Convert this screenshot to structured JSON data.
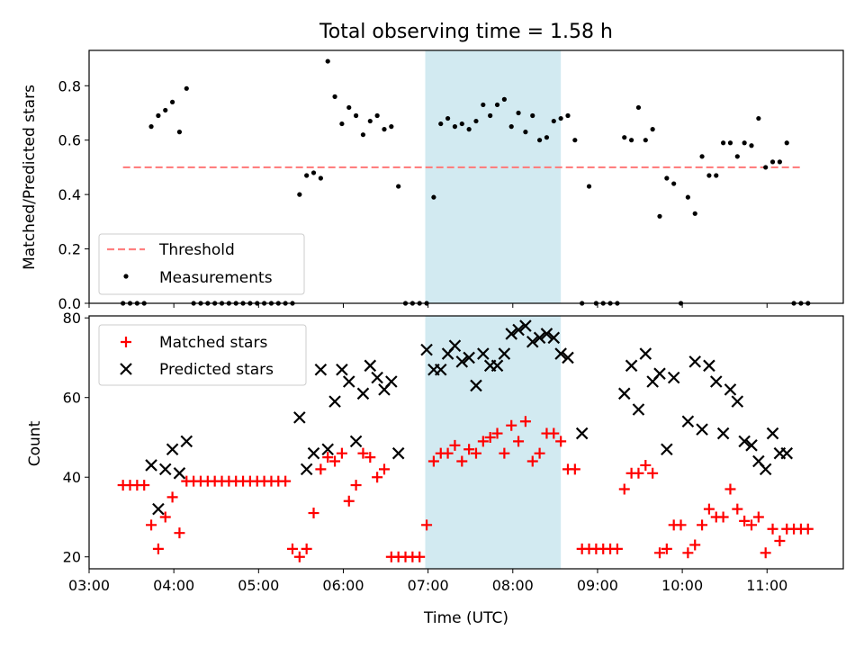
{
  "title": "Total observing time = 1.58 h",
  "xlabel": "Time (UTC)",
  "x_ticks": [
    "03:00",
    "04:00",
    "05:00",
    "06:00",
    "07:00",
    "08:00",
    "09:00",
    "10:00",
    "11:00"
  ],
  "highlight_span": {
    "start": "06:58",
    "end": "08:34",
    "color": "#add8e6"
  },
  "chart_data": [
    {
      "type": "scatter",
      "ylabel": "Matched/Predicted stars",
      "ylim": [
        0,
        0.93
      ],
      "y_ticks": [
        "0.0",
        "0.2",
        "0.4",
        "0.6",
        "0.8"
      ],
      "threshold": {
        "name": "Threshold",
        "value": 0.5,
        "x_range": [
          "03:24",
          "11:24"
        ],
        "color": "#ff7f7f"
      },
      "legend": {
        "placement": "lower-left",
        "entries": [
          "Threshold",
          "Measurements"
        ]
      },
      "series": [
        {
          "name": "Measurements",
          "marker": "dot",
          "color": "#000000",
          "points": [
            [
              "03:24",
              0
            ],
            [
              "03:29",
              0
            ],
            [
              "03:34",
              0
            ],
            [
              "03:39",
              0
            ],
            [
              "03:44",
              0.65
            ],
            [
              "03:49",
              0.69
            ],
            [
              "03:54",
              0.71
            ],
            [
              "03:59",
              0.74
            ],
            [
              "04:04",
              0.63
            ],
            [
              "04:09",
              0.79
            ],
            [
              "04:14",
              0
            ],
            [
              "04:19",
              0
            ],
            [
              "04:24",
              0
            ],
            [
              "04:29",
              0
            ],
            [
              "04:34",
              0
            ],
            [
              "04:39",
              0
            ],
            [
              "04:44",
              0
            ],
            [
              "04:49",
              0
            ],
            [
              "04:54",
              0
            ],
            [
              "04:59",
              0
            ],
            [
              "05:04",
              0
            ],
            [
              "05:09",
              0
            ],
            [
              "05:14",
              0
            ],
            [
              "05:19",
              0
            ],
            [
              "05:24",
              0
            ],
            [
              "05:29",
              0.4
            ],
            [
              "05:34",
              0.47
            ],
            [
              "05:39",
              0.48
            ],
            [
              "05:44",
              0.46
            ],
            [
              "05:49",
              0.89
            ],
            [
              "05:54",
              0.76
            ],
            [
              "05:59",
              0.66
            ],
            [
              "06:04",
              0.72
            ],
            [
              "06:09",
              0.69
            ],
            [
              "06:14",
              0.62
            ],
            [
              "06:19",
              0.67
            ],
            [
              "06:24",
              0.69
            ],
            [
              "06:29",
              0.64
            ],
            [
              "06:34",
              0.65
            ],
            [
              "06:39",
              0.43
            ],
            [
              "06:44",
              0
            ],
            [
              "06:49",
              0
            ],
            [
              "06:54",
              0
            ],
            [
              "06:59",
              0
            ],
            [
              "07:04",
              0.39
            ],
            [
              "07:09",
              0.66
            ],
            [
              "07:14",
              0.68
            ],
            [
              "07:19",
              0.65
            ],
            [
              "07:24",
              0.66
            ],
            [
              "07:29",
              0.64
            ],
            [
              "07:34",
              0.67
            ],
            [
              "07:39",
              0.73
            ],
            [
              "07:44",
              0.69
            ],
            [
              "07:49",
              0.73
            ],
            [
              "07:54",
              0.75
            ],
            [
              "07:59",
              0.65
            ],
            [
              "08:04",
              0.7
            ],
            [
              "08:09",
              0.63
            ],
            [
              "08:14",
              0.69
            ],
            [
              "08:19",
              0.6
            ],
            [
              "08:24",
              0.61
            ],
            [
              "08:29",
              0.67
            ],
            [
              "08:34",
              0.68
            ],
            [
              "08:39",
              0.69
            ],
            [
              "08:44",
              0.6
            ],
            [
              "08:49",
              0
            ],
            [
              "08:54",
              0.43
            ],
            [
              "08:59",
              0
            ],
            [
              "09:04",
              0
            ],
            [
              "09:09",
              0
            ],
            [
              "09:14",
              0
            ],
            [
              "09:19",
              0.61
            ],
            [
              "09:24",
              0.6
            ],
            [
              "09:29",
              0.72
            ],
            [
              "09:34",
              0.6
            ],
            [
              "09:39",
              0.64
            ],
            [
              "09:44",
              0.32
            ],
            [
              "09:49",
              0.46
            ],
            [
              "09:54",
              0.44
            ],
            [
              "09:59",
              0
            ],
            [
              "10:04",
              0.39
            ],
            [
              "10:09",
              0.33
            ],
            [
              "10:14",
              0.54
            ],
            [
              "10:19",
              0.47
            ],
            [
              "10:24",
              0.47
            ],
            [
              "10:29",
              0.59
            ],
            [
              "10:34",
              0.59
            ],
            [
              "10:39",
              0.54
            ],
            [
              "10:44",
              0.59
            ],
            [
              "10:49",
              0.58
            ],
            [
              "10:54",
              0.68
            ],
            [
              "10:59",
              0.5
            ],
            [
              "11:04",
              0.52
            ],
            [
              "11:09",
              0.52
            ],
            [
              "11:14",
              0.59
            ],
            [
              "11:19",
              0
            ],
            [
              "11:24",
              0
            ],
            [
              "11:29",
              0
            ]
          ]
        }
      ]
    },
    {
      "type": "scatter",
      "ylabel": "Count",
      "ylim": [
        17,
        80.5
      ],
      "y_ticks": [
        "20",
        "40",
        "60",
        "80"
      ],
      "legend": {
        "placement": "upper-left",
        "entries": [
          "Matched stars",
          "Predicted stars"
        ]
      },
      "series": [
        {
          "name": "Matched stars",
          "marker": "plus",
          "color": "#ff0000",
          "points": [
            [
              "03:24",
              38
            ],
            [
              "03:29",
              38
            ],
            [
              "03:34",
              38
            ],
            [
              "03:39",
              38
            ],
            [
              "03:44",
              28
            ],
            [
              "03:49",
              22
            ],
            [
              "03:54",
              30
            ],
            [
              "03:59",
              35
            ],
            [
              "04:04",
              26
            ],
            [
              "04:09",
              39
            ],
            [
              "04:14",
              39
            ],
            [
              "04:19",
              39
            ],
            [
              "04:24",
              39
            ],
            [
              "04:29",
              39
            ],
            [
              "04:34",
              39
            ],
            [
              "04:39",
              39
            ],
            [
              "04:44",
              39
            ],
            [
              "04:49",
              39
            ],
            [
              "04:54",
              39
            ],
            [
              "04:59",
              39
            ],
            [
              "05:04",
              39
            ],
            [
              "05:09",
              39
            ],
            [
              "05:14",
              39
            ],
            [
              "05:19",
              39
            ],
            [
              "05:24",
              22
            ],
            [
              "05:29",
              20
            ],
            [
              "05:34",
              22
            ],
            [
              "05:39",
              31
            ],
            [
              "05:44",
              42
            ],
            [
              "05:49",
              45
            ],
            [
              "05:54",
              44
            ],
            [
              "05:59",
              46
            ],
            [
              "06:04",
              34
            ],
            [
              "06:09",
              38
            ],
            [
              "06:14",
              46
            ],
            [
              "06:19",
              45
            ],
            [
              "06:24",
              40
            ],
            [
              "06:29",
              42
            ],
            [
              "06:34",
              20
            ],
            [
              "06:39",
              20
            ],
            [
              "06:44",
              20
            ],
            [
              "06:49",
              20
            ],
            [
              "06:54",
              20
            ],
            [
              "06:59",
              28
            ],
            [
              "07:04",
              44
            ],
            [
              "07:09",
              46
            ],
            [
              "07:14",
              46
            ],
            [
              "07:19",
              48
            ],
            [
              "07:24",
              44
            ],
            [
              "07:29",
              47
            ],
            [
              "07:34",
              46
            ],
            [
              "07:39",
              49
            ],
            [
              "07:44",
              50
            ],
            [
              "07:49",
              51
            ],
            [
              "07:54",
              46
            ],
            [
              "07:59",
              53
            ],
            [
              "08:04",
              49
            ],
            [
              "08:09",
              54
            ],
            [
              "08:14",
              44
            ],
            [
              "08:19",
              46
            ],
            [
              "08:24",
              51
            ],
            [
              "08:29",
              51
            ],
            [
              "08:34",
              49
            ],
            [
              "08:39",
              42
            ],
            [
              "08:44",
              42
            ],
            [
              "08:49",
              22
            ],
            [
              "08:54",
              22
            ],
            [
              "08:59",
              22
            ],
            [
              "09:04",
              22
            ],
            [
              "09:09",
              22
            ],
            [
              "09:14",
              22
            ],
            [
              "09:19",
              37
            ],
            [
              "09:24",
              41
            ],
            [
              "09:29",
              41
            ],
            [
              "09:34",
              43
            ],
            [
              "09:39",
              41
            ],
            [
              "09:44",
              21
            ],
            [
              "09:49",
              22
            ],
            [
              "09:54",
              28
            ],
            [
              "09:59",
              28
            ],
            [
              "10:04",
              21
            ],
            [
              "10:09",
              23
            ],
            [
              "10:14",
              28
            ],
            [
              "10:19",
              32
            ],
            [
              "10:24",
              30
            ],
            [
              "10:29",
              30
            ],
            [
              "10:34",
              37
            ],
            [
              "10:39",
              32
            ],
            [
              "10:44",
              29
            ],
            [
              "10:49",
              28
            ],
            [
              "10:54",
              30
            ],
            [
              "10:59",
              21
            ],
            [
              "11:04",
              27
            ],
            [
              "11:09",
              24
            ],
            [
              "11:14",
              27
            ],
            [
              "11:19",
              27
            ],
            [
              "11:24",
              27
            ],
            [
              "11:29",
              27
            ]
          ]
        },
        {
          "name": "Predicted stars",
          "marker": "x",
          "color": "#000000",
          "points": [
            [
              "03:44",
              43
            ],
            [
              "03:49",
              32
            ],
            [
              "03:54",
              42
            ],
            [
              "03:59",
              47
            ],
            [
              "04:04",
              41
            ],
            [
              "04:09",
              49
            ],
            [
              "05:29",
              55
            ],
            [
              "05:34",
              42
            ],
            [
              "05:39",
              46
            ],
            [
              "05:44",
              67
            ],
            [
              "05:49",
              47
            ],
            [
              "05:54",
              59
            ],
            [
              "05:59",
              67
            ],
            [
              "06:04",
              64
            ],
            [
              "06:09",
              49
            ],
            [
              "06:14",
              61
            ],
            [
              "06:19",
              68
            ],
            [
              "06:24",
              65
            ],
            [
              "06:29",
              62
            ],
            [
              "06:34",
              64
            ],
            [
              "06:39",
              46
            ],
            [
              "06:59",
              72
            ],
            [
              "07:04",
              67
            ],
            [
              "07:09",
              67
            ],
            [
              "07:14",
              71
            ],
            [
              "07:19",
              73
            ],
            [
              "07:24",
              69
            ],
            [
              "07:29",
              70
            ],
            [
              "07:34",
              63
            ],
            [
              "07:39",
              71
            ],
            [
              "07:44",
              68
            ],
            [
              "07:49",
              68
            ],
            [
              "07:54",
              71
            ],
            [
              "07:59",
              76
            ],
            [
              "08:04",
              77
            ],
            [
              "08:09",
              78
            ],
            [
              "08:14",
              74
            ],
            [
              "08:19",
              75
            ],
            [
              "08:24",
              76
            ],
            [
              "08:29",
              75
            ],
            [
              "08:34",
              71
            ],
            [
              "08:39",
              70
            ],
            [
              "08:49",
              51
            ],
            [
              "09:19",
              61
            ],
            [
              "09:24",
              68
            ],
            [
              "09:29",
              57
            ],
            [
              "09:34",
              71
            ],
            [
              "09:39",
              64
            ],
            [
              "09:44",
              66
            ],
            [
              "09:49",
              47
            ],
            [
              "09:54",
              65
            ],
            [
              "10:04",
              54
            ],
            [
              "10:09",
              69
            ],
            [
              "10:14",
              52
            ],
            [
              "10:19",
              68
            ],
            [
              "10:24",
              64
            ],
            [
              "10:29",
              51
            ],
            [
              "10:34",
              62
            ],
            [
              "10:39",
              59
            ],
            [
              "10:44",
              49
            ],
            [
              "10:49",
              48
            ],
            [
              "10:54",
              44
            ],
            [
              "10:59",
              42
            ],
            [
              "11:04",
              51
            ],
            [
              "11:09",
              46
            ],
            [
              "11:14",
              46
            ]
          ]
        }
      ]
    }
  ]
}
